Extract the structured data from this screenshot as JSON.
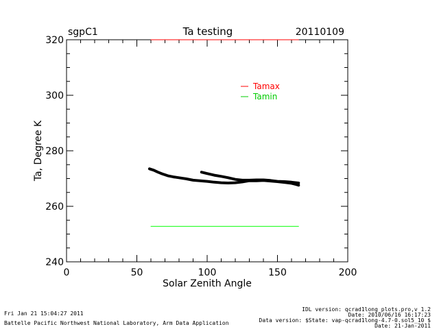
{
  "chart_data": {
    "type": "scatter",
    "header_left": "sgpC1",
    "title": "Ta testing",
    "header_right": "20110109",
    "xlabel": "Solar Zenith Angle",
    "ylabel": "Ta, Degree K",
    "xlim": [
      0,
      200
    ],
    "ylim": [
      240,
      320
    ],
    "x_ticks": [
      0,
      50,
      100,
      150,
      200
    ],
    "y_ticks": [
      240,
      260,
      280,
      300,
      320
    ],
    "x_minor_step": 10,
    "y_minor_step": 5,
    "grid": false,
    "legend_placement": "upper-right inside plot",
    "legend": [
      {
        "label": "Tamax",
        "color": "#ff0000"
      },
      {
        "label": "Tamin",
        "color": "#00ff00"
      }
    ],
    "series": [
      {
        "name": "Tamax",
        "color": "#ff0000",
        "x": [
          60,
          165
        ],
        "y": [
          320,
          320
        ]
      },
      {
        "name": "Tamin",
        "color": "#00ff00",
        "x": [
          60,
          165
        ],
        "y": [
          252.8,
          252.8
        ]
      },
      {
        "color": "#000000",
        "x": [
          59,
          62,
          65,
          68,
          72,
          76,
          80,
          85,
          90,
          95,
          100,
          105,
          110,
          115,
          120,
          125,
          130,
          135,
          140,
          145,
          150,
          155,
          160,
          163,
          165
        ],
        "y": [
          273.5,
          273.0,
          272.3,
          271.7,
          271.0,
          270.6,
          270.3,
          269.9,
          269.4,
          269.2,
          269.0,
          268.7,
          268.5,
          268.4,
          268.5,
          268.8,
          269.2,
          269.2,
          269.3,
          269.1,
          268.9,
          268.6,
          268.3,
          267.9,
          267.6
        ]
      },
      {
        "color": "#000000",
        "x": [
          96,
          100,
          105,
          110,
          115,
          120,
          125,
          130,
          135,
          140,
          145,
          150,
          155,
          160,
          165
        ],
        "y": [
          272.3,
          271.8,
          271.2,
          270.8,
          270.3,
          269.7,
          269.4,
          269.4,
          269.5,
          269.5,
          269.3,
          269.0,
          268.9,
          268.7,
          268.4
        ]
      }
    ]
  },
  "footer": {
    "left_line1": "Fri Jan 21 15:04:27 2011",
    "left_line2": "Battelle Pacific Northwest National Laboratory, Arm Data Application",
    "right_line1": "IDL version: qcrad1long_plots.pro,v 1.2",
    "right_line2": "Date: 2010/06/16 16:17:23",
    "right_line3": "Data version: $State: vap-qcrad1long-4.7-0.sol5_10 $",
    "right_line4": "Date: 21-Jan-2011"
  }
}
